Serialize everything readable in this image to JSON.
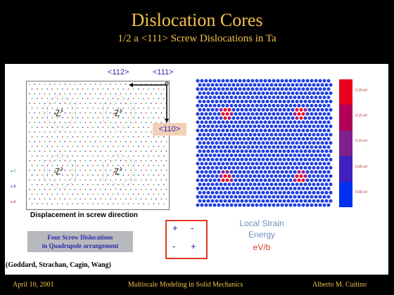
{
  "slide": {
    "title": "Dislocation Cores",
    "subtitle": "1/2 a <111> Screw Dislocations in Ta"
  },
  "lattice_panel": {
    "directions": {
      "d112": "<112>",
      "d111": "<111>",
      "d110": "<110>"
    },
    "legend": [
      "C",
      "B",
      "A"
    ],
    "legend_colors": [
      "#2ca02c",
      "#1f3fd0",
      "#d02020"
    ],
    "caption": "Displacement in screw direction"
  },
  "quadrupole_box": {
    "line1": "Four Screw Dislocations",
    "line2": "in Quadrupole arrangement"
  },
  "sign_box": {
    "signs": [
      "+",
      "-",
      "-",
      "+"
    ]
  },
  "energy_scale": {
    "labels": [
      "0.20 eV",
      "0.15 eV",
      "0.10 eV",
      "0.05 eV",
      "0.00 eV"
    ],
    "colors": [
      "#e8001c",
      "#b0005a",
      "#80208c",
      "#4020c0",
      "#0030f0"
    ]
  },
  "energy_caption": {
    "line1": "Local Strain",
    "line2": "Energy",
    "line3": "eV/b"
  },
  "citation": "(Goddard, Strachan, Cagin, Wang)",
  "footer": {
    "date": "April 10, 2001",
    "course": "Multiscale Modeling in Solid Mechanics",
    "author": "Alberto M. Cuitino"
  }
}
